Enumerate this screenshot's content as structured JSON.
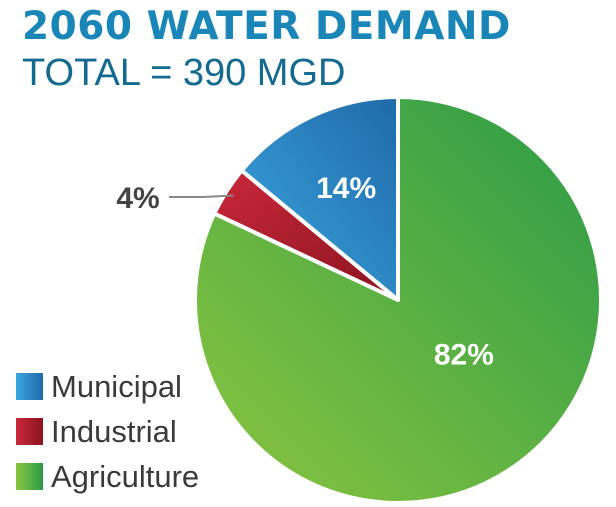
{
  "header": {
    "title": "2060 WATER DEMAND",
    "subtitle": "TOTAL = 390 MGD"
  },
  "chart_data": {
    "type": "pie",
    "categories": [
      "Municipal",
      "Industrial",
      "Agriculture"
    ],
    "values": [
      14,
      4,
      82
    ],
    "value_labels": [
      "14%",
      "4%",
      "82%"
    ],
    "colors": {
      "Municipal": [
        "#3ba6df",
        "#1f6aa8"
      ],
      "Industrial": [
        "#c9283a",
        "#8a1420"
      ],
      "Agriculture": [
        "#8cc63f",
        "#2a9a48"
      ]
    },
    "legend_position": "bottom-left",
    "start_angle_deg": 0,
    "direction": "counterclockwise"
  }
}
